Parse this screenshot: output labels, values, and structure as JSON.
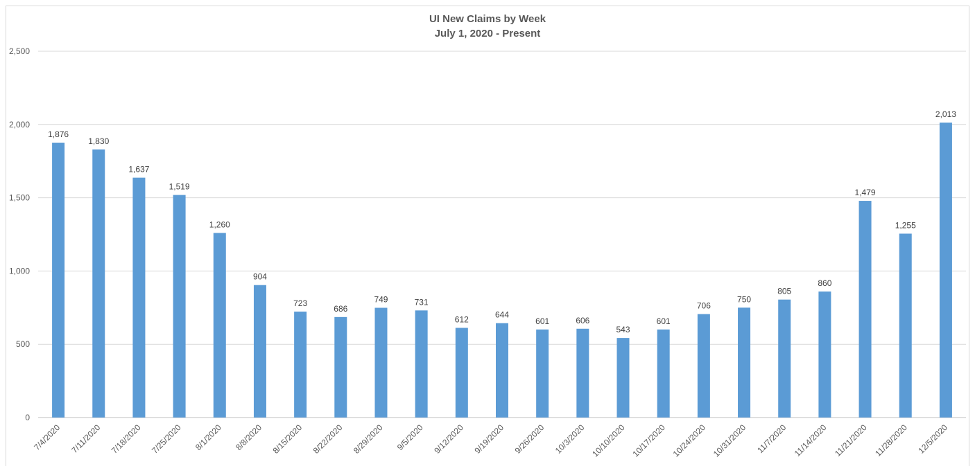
{
  "chart_data": {
    "type": "bar",
    "title": "UI New Claims by Week",
    "subtitle": "July 1, 2020 - Present",
    "xlabel": "",
    "ylabel": "",
    "ylim": [
      0,
      2500
    ],
    "yticks": [
      0,
      500,
      1000,
      1500,
      2000,
      2500
    ],
    "ytick_labels": [
      "0",
      "500",
      "1,000",
      "1,500",
      "2,000",
      "2,500"
    ],
    "grid": true,
    "legend": "none",
    "bar_color": "#5b9bd5",
    "categories": [
      "7/4/2020",
      "7/11/2020",
      "7/18/2020",
      "7/25/2020",
      "8/1/2020",
      "8/8/2020",
      "8/15/2020",
      "8/22/2020",
      "8/29/2020",
      "9/5/2020",
      "9/12/2020",
      "9/19/2020",
      "9/26/2020",
      "10/3/2020",
      "10/10/2020",
      "10/17/2020",
      "10/24/2020",
      "10/31/2020",
      "11/7/2020",
      "11/14/2020",
      "11/21/2020",
      "11/28/2020",
      "12/5/2020"
    ],
    "values": [
      1876,
      1830,
      1637,
      1519,
      1260,
      904,
      723,
      686,
      749,
      731,
      612,
      644,
      601,
      606,
      543,
      601,
      706,
      750,
      805,
      860,
      1479,
      1255,
      2013
    ],
    "value_labels": [
      "1,876",
      "1,830",
      "1,637",
      "1,519",
      "1,260",
      "904",
      "723",
      "686",
      "749",
      "731",
      "612",
      "644",
      "601",
      "606",
      "543",
      "601",
      "706",
      "750",
      "805",
      "860",
      "1,479",
      "1,255",
      "2,013"
    ]
  }
}
